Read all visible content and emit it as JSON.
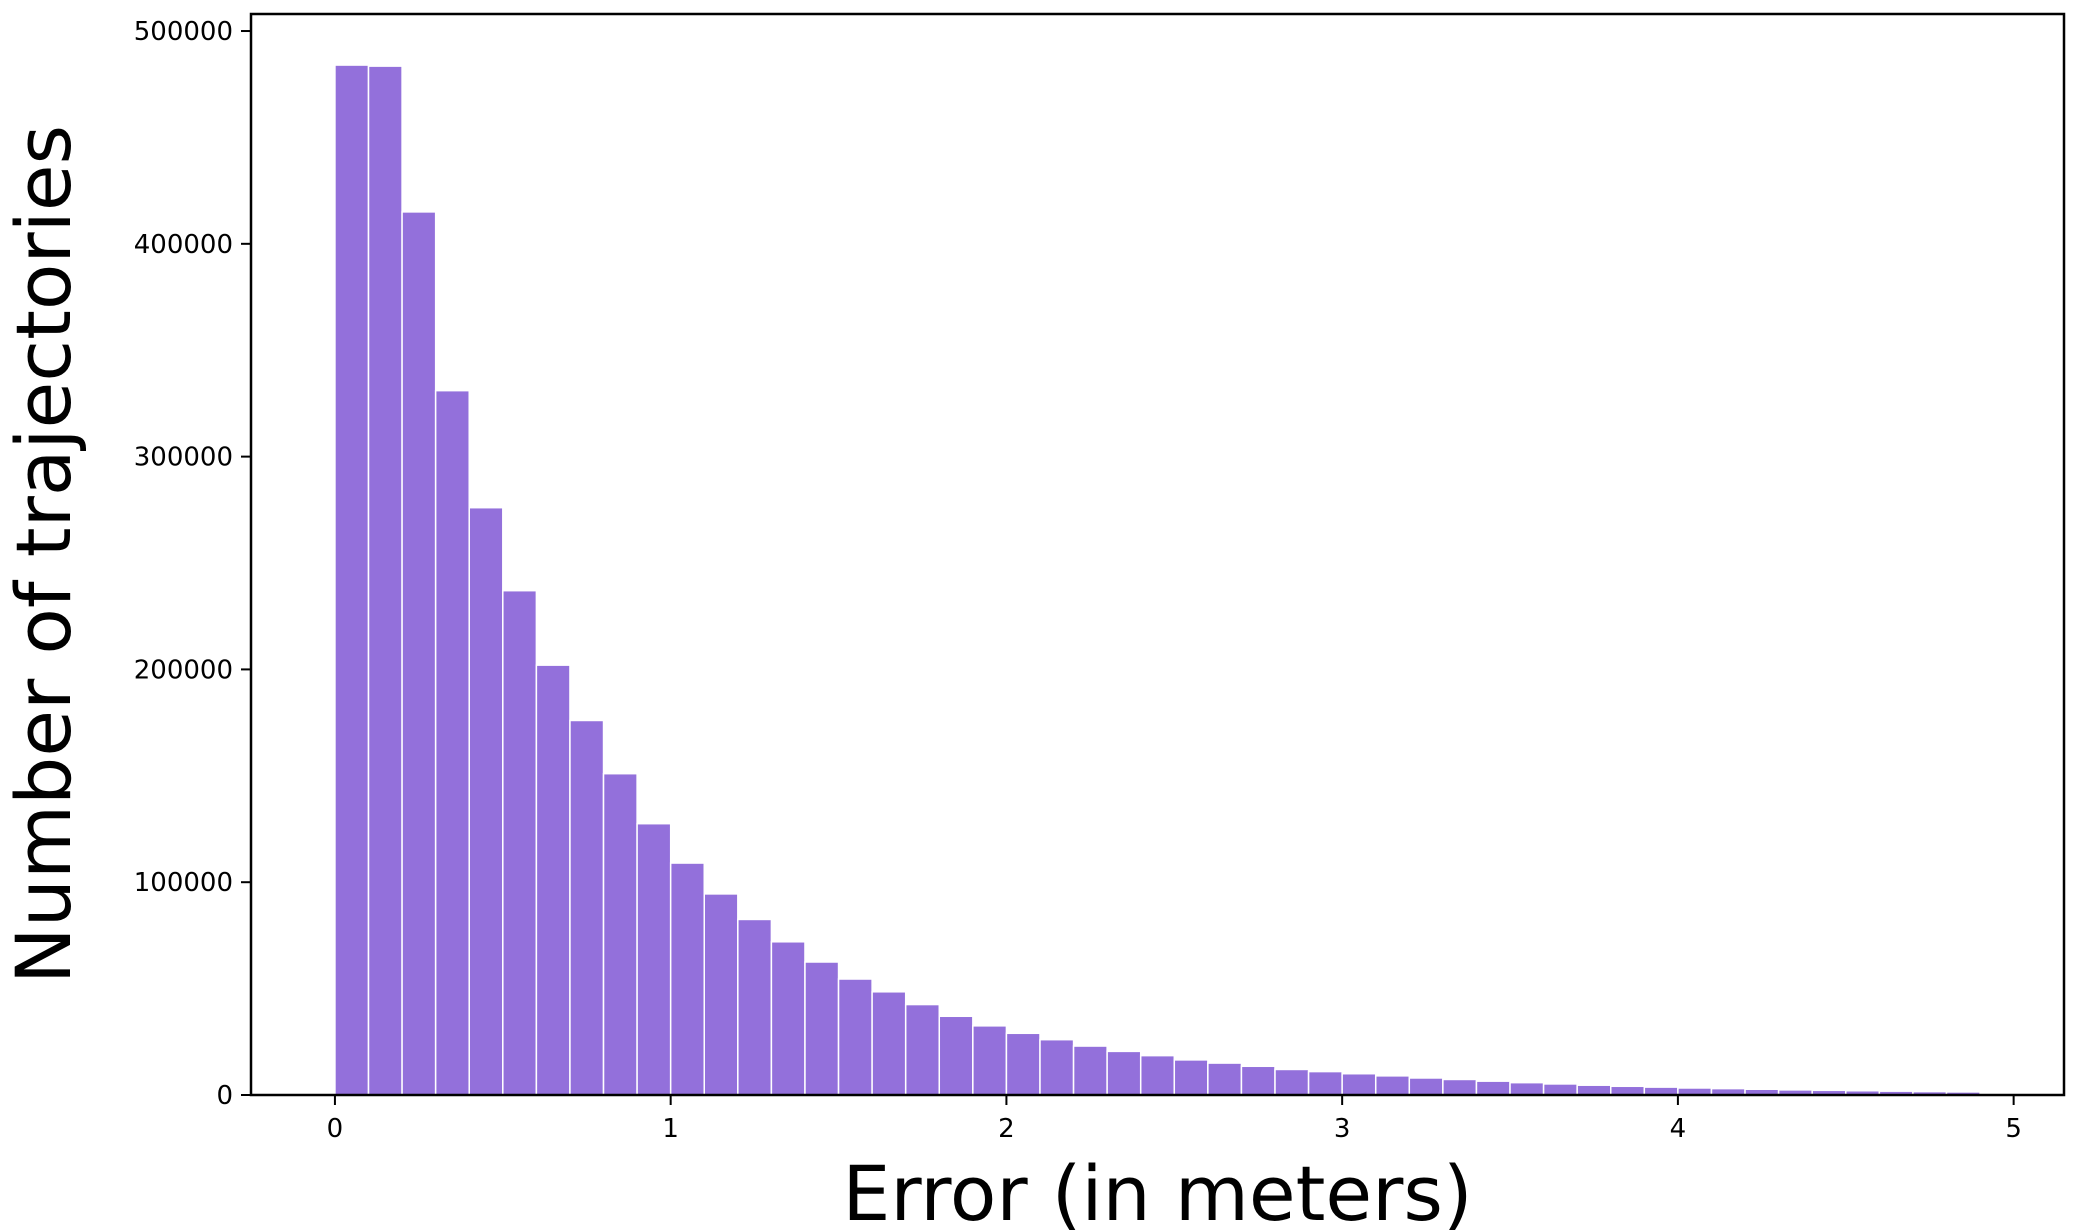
{
  "chart_data": {
    "type": "bar",
    "title": "",
    "xlabel": "Error (in meters)",
    "ylabel": "Number of trajectories",
    "bin_width": 0.1,
    "bin_starts": [
      0.0,
      0.1,
      0.2,
      0.3,
      0.4,
      0.5,
      0.6,
      0.7,
      0.8,
      0.9,
      1.0,
      1.1,
      1.2,
      1.3,
      1.4,
      1.5,
      1.6,
      1.7,
      1.8,
      1.9,
      2.0,
      2.1,
      2.2,
      2.3,
      2.4,
      2.5,
      2.6,
      2.7,
      2.8,
      2.9,
      3.0,
      3.1,
      3.2,
      3.3,
      3.4,
      3.5,
      3.6,
      3.7,
      3.8,
      3.9,
      4.0,
      4.1,
      4.2,
      4.3,
      4.4,
      4.5,
      4.6,
      4.7,
      4.8
    ],
    "values": [
      484000,
      483500,
      415000,
      331000,
      276000,
      237000,
      202000,
      176000,
      151000,
      127500,
      109000,
      94500,
      82500,
      72000,
      62500,
      54500,
      48500,
      42500,
      37000,
      32500,
      29000,
      26000,
      23000,
      20500,
      18500,
      16500,
      15000,
      13500,
      12000,
      11000,
      10000,
      9000,
      8000,
      7300,
      6500,
      5800,
      5200,
      4600,
      4100,
      3700,
      3300,
      3000,
      2700,
      2400,
      2200,
      2000,
      1800,
      1600,
      1450
    ],
    "xlim": [
      -0.25,
      5.15
    ],
    "ylim": [
      0,
      508000
    ],
    "xticks": [
      0,
      1,
      2,
      3,
      4,
      5
    ],
    "xtick_labels": [
      "0",
      "1",
      "2",
      "3",
      "4",
      "5"
    ],
    "yticks": [
      0,
      100000,
      200000,
      300000,
      400000,
      500000
    ],
    "ytick_labels": [
      "0",
      "100000",
      "200000",
      "300000",
      "400000",
      "500000"
    ],
    "grid": false,
    "legend": "none",
    "bar_color": "#9370db",
    "bar_edge_color": "#ffffff"
  }
}
